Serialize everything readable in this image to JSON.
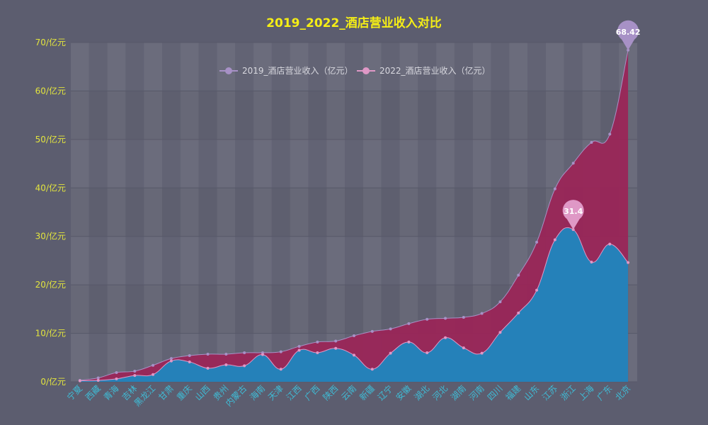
{
  "chart_data": {
    "type": "area",
    "title": "2019_2022_酒店营业收入对比",
    "y_unit_suffix": "/亿元",
    "ylim": [
      0,
      70
    ],
    "y_ticks": [
      0,
      10,
      20,
      30,
      40,
      50,
      60,
      70
    ],
    "grid": true,
    "legend_position": "top-center",
    "categories": [
      "宁夏",
      "西藏",
      "青海",
      "吉林",
      "黑龙江",
      "甘肃",
      "重庆",
      "山西",
      "贵州",
      "内蒙古",
      "海南",
      "天津",
      "江西",
      "广西",
      "陕西",
      "云南",
      "新疆",
      "辽宁",
      "安徽",
      "湖北",
      "河北",
      "湖南",
      "河南",
      "四川",
      "福建",
      "山东",
      "江苏",
      "浙江",
      "上海",
      "广东",
      "北京"
    ],
    "series": [
      {
        "name": "2019_酒店营业收入（亿元）",
        "color": "#9b2457",
        "marker_color": "#a791c6",
        "values": [
          0.3,
          0.8,
          1.9,
          2.2,
          3.4,
          4.8,
          5.4,
          5.7,
          5.7,
          6.0,
          6.0,
          6.2,
          7.3,
          8.2,
          8.4,
          9.5,
          10.4,
          10.9,
          12.0,
          12.9,
          13.1,
          13.3,
          14.1,
          16.5,
          22.0,
          28.8,
          39.8,
          45.1,
          49.4,
          51.1,
          68.42
        ],
        "max_label": "68.42"
      },
      {
        "name": "2022_酒店营业收入（亿元）",
        "color": "#1f86bf",
        "marker_color": "#df98c6",
        "values": [
          0.2,
          0.3,
          0.6,
          1.3,
          1.5,
          4.3,
          4.1,
          2.8,
          3.5,
          3.3,
          5.6,
          2.6,
          6.5,
          6.0,
          6.9,
          5.5,
          2.6,
          5.9,
          8.2,
          6.0,
          9.1,
          7.0,
          5.9,
          10.2,
          14.2,
          18.9,
          29.3,
          31.4,
          24.7,
          28.4,
          24.6
        ],
        "max_label": "31.4"
      }
    ],
    "colors": {
      "title": "#f5ee16",
      "y_tick": "#e3e53e",
      "x_tick": "#3fbcd6",
      "legend_text": "#d8d8df",
      "background": "#5c5d6f",
      "band_light": "#6b6c7c",
      "band_dark": "#626374"
    }
  }
}
